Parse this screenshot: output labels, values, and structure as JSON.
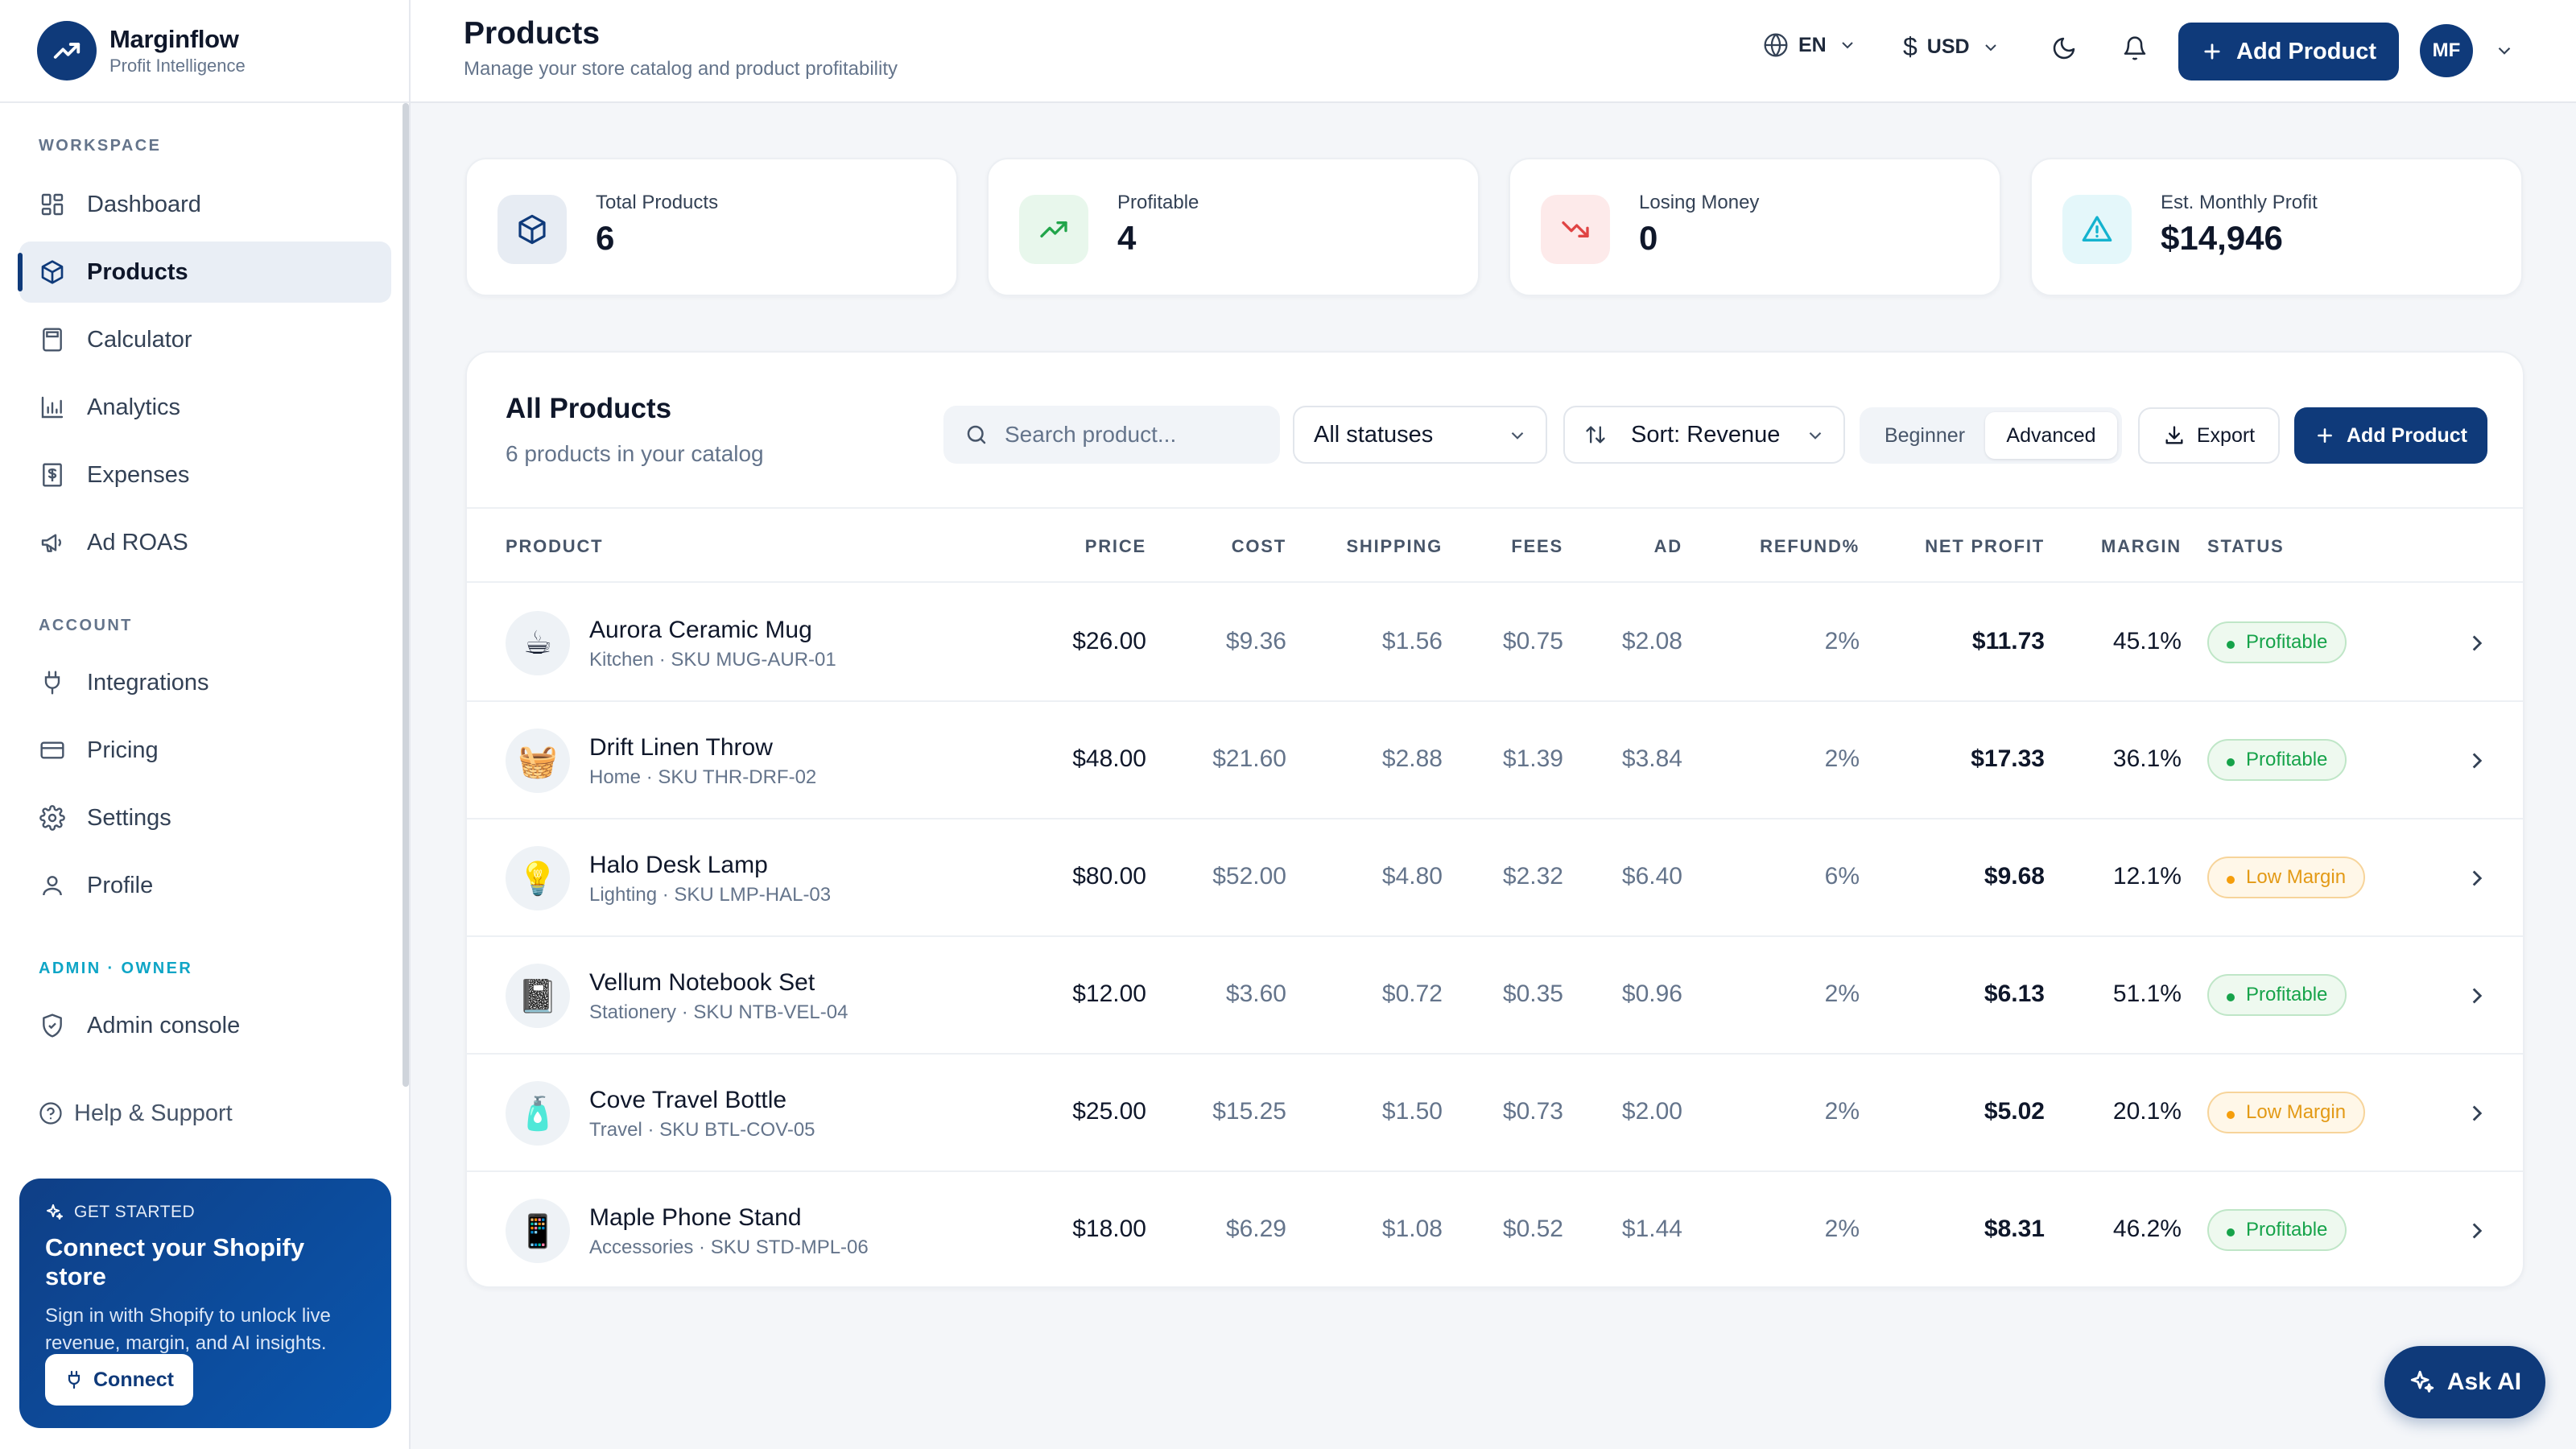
{
  "brand": {
    "name": "Marginflow",
    "subtitle": "Profit Intelligence"
  },
  "sidebar": {
    "workspace_label": "WORKSPACE",
    "workspace_items": [
      {
        "label": "Dashboard",
        "icon": "grid-icon"
      },
      {
        "label": "Products",
        "icon": "box-icon",
        "active": true
      },
      {
        "label": "Calculator",
        "icon": "calculator-icon"
      },
      {
        "label": "Analytics",
        "icon": "bar-chart-icon"
      },
      {
        "label": "Expenses",
        "icon": "receipt-icon"
      },
      {
        "label": "Ad ROAS",
        "icon": "megaphone-icon"
      }
    ],
    "account_label": "ACCOUNT",
    "account_items": [
      {
        "label": "Integrations",
        "icon": "plug-icon"
      },
      {
        "label": "Pricing",
        "icon": "credit-card-icon"
      },
      {
        "label": "Settings",
        "icon": "gear-icon"
      },
      {
        "label": "Profile",
        "icon": "user-icon"
      }
    ],
    "admin_label": "ADMIN · OWNER",
    "admin_items": [
      {
        "label": "Admin console",
        "icon": "shield-icon"
      }
    ],
    "help_label": "Help & Support",
    "promo": {
      "tag": "GET STARTED",
      "title": "Connect your Shopify store",
      "description": "Sign in with Shopify to unlock live revenue, margin, and AI insights.",
      "button": "Connect"
    }
  },
  "header": {
    "title": "Products",
    "subtitle": "Manage your store catalog and product profitability",
    "language": "EN",
    "currency": "USD",
    "add_button": "Add Product",
    "avatar_initials": "MF"
  },
  "stats": [
    {
      "label": "Total Products",
      "value": "6",
      "icon": "box-icon"
    },
    {
      "label": "Profitable",
      "value": "4",
      "icon": "trending-up-icon"
    },
    {
      "label": "Losing Money",
      "value": "0",
      "icon": "trending-down-icon"
    },
    {
      "label": "Est. Monthly Profit",
      "value": "$14,946",
      "icon": "alert-triangle-icon"
    }
  ],
  "table": {
    "title": "All Products",
    "subtitle": "6 products in your catalog",
    "search_placeholder": "Search product...",
    "status_filter": "All statuses",
    "sort_label": "Sort: Revenue",
    "mode_beginner": "Beginner",
    "mode_advanced": "Advanced",
    "export_label": "Export",
    "add_label": "Add Product",
    "columns": {
      "product": "PRODUCT",
      "price": "PRICE",
      "cost": "COST",
      "shipping": "SHIPPING",
      "fees": "FEES",
      "ad": "AD",
      "refund": "REFUND%",
      "net_profit": "NET PROFIT",
      "margin": "MARGIN",
      "status": "STATUS"
    },
    "rows": [
      {
        "name": "Aurora Ceramic Mug",
        "meta": "Kitchen · SKU MUG-AUR-01",
        "emoji": "☕",
        "price": "$26.00",
        "cost": "$9.36",
        "shipping": "$1.56",
        "fees": "$0.75",
        "ad": "$2.08",
        "refund": "2%",
        "net_profit": "$11.73",
        "margin": "45.1%",
        "status": "Profitable",
        "status_type": "ok"
      },
      {
        "name": "Drift Linen Throw",
        "meta": "Home · SKU THR-DRF-02",
        "emoji": "🧺",
        "price": "$48.00",
        "cost": "$21.60",
        "shipping": "$2.88",
        "fees": "$1.39",
        "ad": "$3.84",
        "refund": "2%",
        "net_profit": "$17.33",
        "margin": "36.1%",
        "status": "Profitable",
        "status_type": "ok"
      },
      {
        "name": "Halo Desk Lamp",
        "meta": "Lighting · SKU LMP-HAL-03",
        "emoji": "💡",
        "price": "$80.00",
        "cost": "$52.00",
        "shipping": "$4.80",
        "fees": "$2.32",
        "ad": "$6.40",
        "refund": "6%",
        "net_profit": "$9.68",
        "margin": "12.1%",
        "status": "Low Margin",
        "status_type": "low"
      },
      {
        "name": "Vellum Notebook Set",
        "meta": "Stationery · SKU NTB-VEL-04",
        "emoji": "📓",
        "price": "$12.00",
        "cost": "$3.60",
        "shipping": "$0.72",
        "fees": "$0.35",
        "ad": "$0.96",
        "refund": "2%",
        "net_profit": "$6.13",
        "margin": "51.1%",
        "status": "Profitable",
        "status_type": "ok"
      },
      {
        "name": "Cove Travel Bottle",
        "meta": "Travel · SKU BTL-COV-05",
        "emoji": "🧴",
        "price": "$25.00",
        "cost": "$15.25",
        "shipping": "$1.50",
        "fees": "$0.73",
        "ad": "$2.00",
        "refund": "2%",
        "net_profit": "$5.02",
        "margin": "20.1%",
        "status": "Low Margin",
        "status_type": "low"
      },
      {
        "name": "Maple Phone Stand",
        "meta": "Accessories · SKU STD-MPL-06",
        "emoji": "📱",
        "price": "$18.00",
        "cost": "$6.29",
        "shipping": "$1.08",
        "fees": "$0.52",
        "ad": "$1.44",
        "refund": "2%",
        "net_profit": "$8.31",
        "margin": "46.2%",
        "status": "Profitable",
        "status_type": "ok"
      }
    ]
  },
  "ask_ai_label": "Ask AI",
  "colors": {
    "primary": "#0f3a7a",
    "profitable": "#16a34a",
    "low_margin": "#e39a16",
    "admin_accent": "#0ea5c6"
  }
}
